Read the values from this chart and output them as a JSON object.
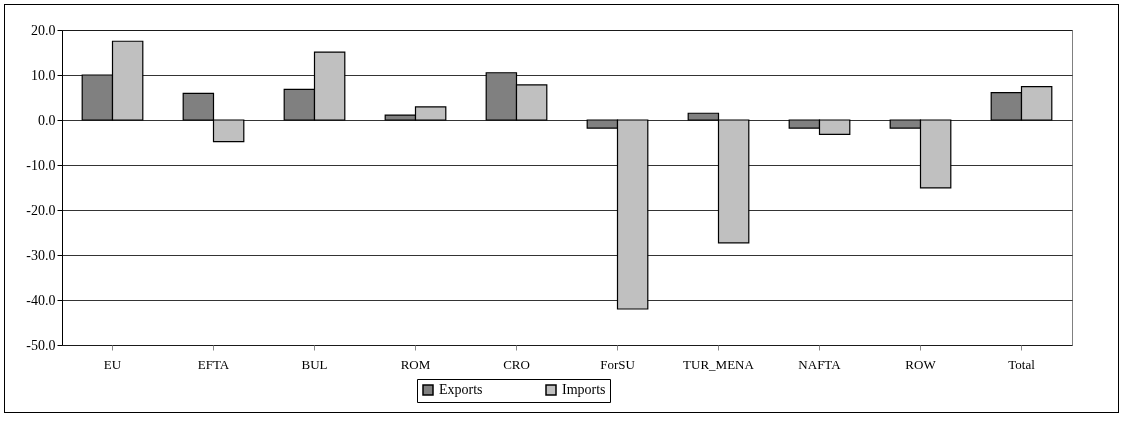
{
  "chart_data": {
    "type": "bar",
    "categories": [
      "EU",
      "EFTA",
      "BUL",
      "ROM",
      "CRO",
      "ForSU",
      "TUR_MENA",
      "NAFTA",
      "ROW",
      "Total"
    ],
    "series": [
      {
        "name": "Exports",
        "color": "#808080",
        "values": [
          10.0,
          5.9,
          6.8,
          1.1,
          10.5,
          -1.8,
          1.5,
          -1.8,
          -1.8,
          6.1
        ]
      },
      {
        "name": "Imports",
        "color": "#c0c0c0",
        "values": [
          17.5,
          -4.8,
          15.1,
          2.9,
          7.8,
          -42.0,
          -27.3,
          -3.2,
          -15.1,
          7.4
        ]
      }
    ],
    "ylim": [
      -50,
      20
    ],
    "yticks": [
      {
        "value": -50,
        "label": "-50.0"
      },
      {
        "value": -40,
        "label": "-40.0"
      },
      {
        "value": -30,
        "label": "-30.0"
      },
      {
        "value": -20,
        "label": "-20.0"
      },
      {
        "value": -10,
        "label": "-10.0"
      },
      {
        "value": 0,
        "label": "0.0"
      },
      {
        "value": 10,
        "label": "10.0"
      },
      {
        "value": 20,
        "label": "20.0"
      }
    ],
    "grid": "y",
    "legend": "bottom"
  }
}
